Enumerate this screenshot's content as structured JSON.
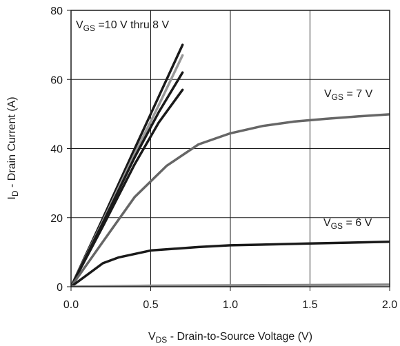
{
  "chart_data": {
    "type": "line",
    "xlabel": {
      "main": "V",
      "sub": "DS",
      "rest": " - Drain-to-Source Voltage (V)"
    },
    "ylabel": {
      "main": "I",
      "sub": "D",
      "rest": " - Drain Current (A)"
    },
    "xlim": [
      0,
      2.0
    ],
    "ylim": [
      0,
      80
    ],
    "x_ticks": [
      "0.0",
      "0.5",
      "1.0",
      "1.5",
      "2.0"
    ],
    "y_ticks": [
      "0",
      "20",
      "40",
      "60",
      "80"
    ],
    "grid": true,
    "legend": "none",
    "series_labels": [
      {
        "main": "V",
        "sub": "GS",
        "rest": " =10 V thru 8 V"
      },
      {
        "main": "V",
        "sub": "GS",
        "rest": " = 7 V"
      },
      {
        "main": "V",
        "sub": "GS",
        "rest": " = 6 V"
      }
    ],
    "series": [
      {
        "color": "#1a1a1a",
        "x": [
          0,
          0.2,
          0.4,
          0.55,
          0.7
        ],
        "y": [
          0,
          19.8,
          40,
          55,
          70
        ]
      },
      {
        "color": "#999999",
        "x": [
          0,
          0.2,
          0.4,
          0.55,
          0.7
        ],
        "y": [
          0,
          19,
          38.5,
          52.5,
          67
        ]
      },
      {
        "color": "#1a1a1a",
        "x": [
          0,
          0.2,
          0.4,
          0.55,
          0.7
        ],
        "y": [
          0,
          18.5,
          37.5,
          50.5,
          62
        ]
      },
      {
        "color": "#1a1a1a",
        "x": [
          0,
          0.2,
          0.4,
          0.55,
          0.7
        ],
        "y": [
          0,
          17.5,
          35.5,
          47.5,
          57
        ]
      },
      {
        "color": "#666666",
        "x": [
          0,
          0.2,
          0.4,
          0.6,
          0.8,
          1.0,
          1.2,
          1.4,
          1.6,
          1.8,
          2.0
        ],
        "y": [
          0,
          13,
          26,
          35,
          41.2,
          44.4,
          46.5,
          47.8,
          48.6,
          49.3,
          49.9
        ]
      },
      {
        "color": "#1a1a1a",
        "x": [
          0,
          0.2,
          0.3,
          0.5,
          0.8,
          1.0,
          1.5,
          2.0
        ],
        "y": [
          0,
          6.8,
          8.5,
          10.5,
          11.5,
          12,
          12.5,
          13
        ]
      },
      {
        "color": "#888888",
        "x": [
          0,
          0.5,
          1.0,
          1.5,
          2.0
        ],
        "y": [
          0,
          0.3,
          0.4,
          0.5,
          0.6
        ]
      }
    ]
  }
}
